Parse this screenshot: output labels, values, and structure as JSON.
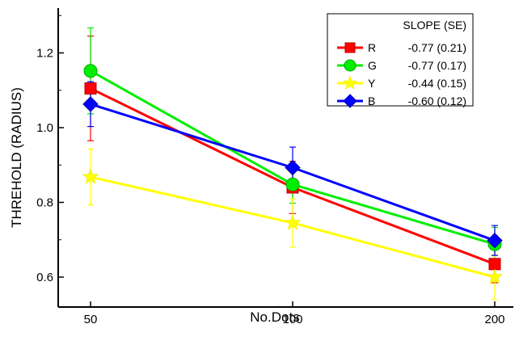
{
  "chart_data": {
    "type": "line",
    "xlabel": "No.Dots",
    "ylabel": "THREHOLD (RADIUS)",
    "categories": [
      "50",
      "100",
      "200"
    ],
    "ylim": [
      0.52,
      1.32
    ],
    "yticks": [
      "0.6",
      "0.8",
      "1.0",
      "1.2"
    ],
    "yticks_values": [
      0.6,
      0.8,
      1.0,
      1.2
    ],
    "grid": false,
    "legend": {
      "title": "SLOPE (SE)",
      "placement": "top-right"
    },
    "series": [
      {
        "name": "R",
        "slope_label": "-0.77 (0.21)",
        "color": "#ff0000",
        "marker": "square",
        "values": [
          1.105,
          0.84,
          0.635
        ],
        "errors": [
          0.14,
          0.07,
          0.05
        ]
      },
      {
        "name": "G",
        "slope_label": "-0.77 (0.17)",
        "color": "#00ee00",
        "marker": "circle",
        "values": [
          1.152,
          0.848,
          0.688
        ],
        "errors": [
          0.115,
          0.05,
          0.045
        ]
      },
      {
        "name": "Y",
        "slope_label": "-0.44 (0.15)",
        "color": "#ffff00",
        "marker": "star",
        "values": [
          0.868,
          0.745,
          0.6
        ],
        "errors": [
          0.075,
          0.065,
          0.06
        ]
      },
      {
        "name": "B",
        "slope_label": "-0.60 (0.12)",
        "color": "#0000ff",
        "marker": "diamond",
        "values": [
          1.063,
          0.893,
          0.698
        ],
        "errors": [
          0.06,
          0.055,
          0.04
        ]
      }
    ]
  }
}
